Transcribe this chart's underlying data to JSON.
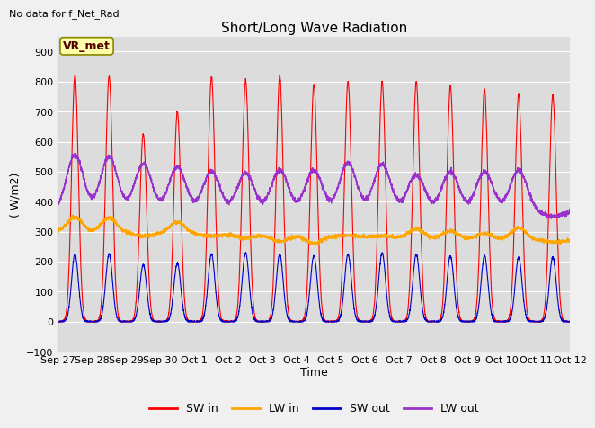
{
  "title": "Short/Long Wave Radiation",
  "top_left_text": "No data for f_Net_Rad",
  "box_label": "VR_met",
  "ylabel": "( W/m2)",
  "xlabel": "Time",
  "ylim": [
    -100,
    950
  ],
  "yticks": [
    -100,
    0,
    100,
    200,
    300,
    400,
    500,
    600,
    700,
    800,
    900
  ],
  "x_tick_labels": [
    "Sep 27",
    "Sep 28",
    "Sep 29",
    "Sep 30",
    "Oct 1",
    "Oct 2",
    "Oct 3",
    "Oct 4",
    "Oct 5",
    "Oct 6",
    "Oct 7",
    "Oct 8",
    "Oct 9",
    "Oct 10",
    "Oct 11",
    "Oct 12"
  ],
  "bg_color": "#dcdcdc",
  "fig_bg_color": "#f0f0f0",
  "legend": [
    {
      "label": "SW in",
      "color": "#ff0000"
    },
    {
      "label": "LW in",
      "color": "#ffa500"
    },
    {
      "label": "SW out",
      "color": "#0000cc"
    },
    {
      "label": "LW out",
      "color": "#9932cc"
    }
  ],
  "n_days": 15,
  "sw_in_peaks": [
    825,
    820,
    625,
    700,
    815,
    805,
    820,
    790,
    800,
    800,
    800,
    785,
    775,
    760,
    755
  ],
  "lw_in_base": 300,
  "lw_in_daytime_peaks": [
    350,
    350,
    290,
    340,
    295,
    290,
    280,
    275,
    305,
    305,
    330,
    325,
    320,
    340,
    295
  ],
  "sw_out_peaks": [
    225,
    225,
    190,
    195,
    225,
    230,
    225,
    220,
    225,
    230,
    225,
    220,
    220,
    215,
    215
  ],
  "lw_out_night_base": 365,
  "lw_out_daytime_peaks": [
    555,
    550,
    525,
    515,
    500,
    495,
    505,
    505,
    530,
    525,
    490,
    500,
    500,
    505,
    350
  ],
  "sw_sigma": 0.1,
  "lw_sigma": 0.22,
  "lw_out_sigma": 0.25
}
